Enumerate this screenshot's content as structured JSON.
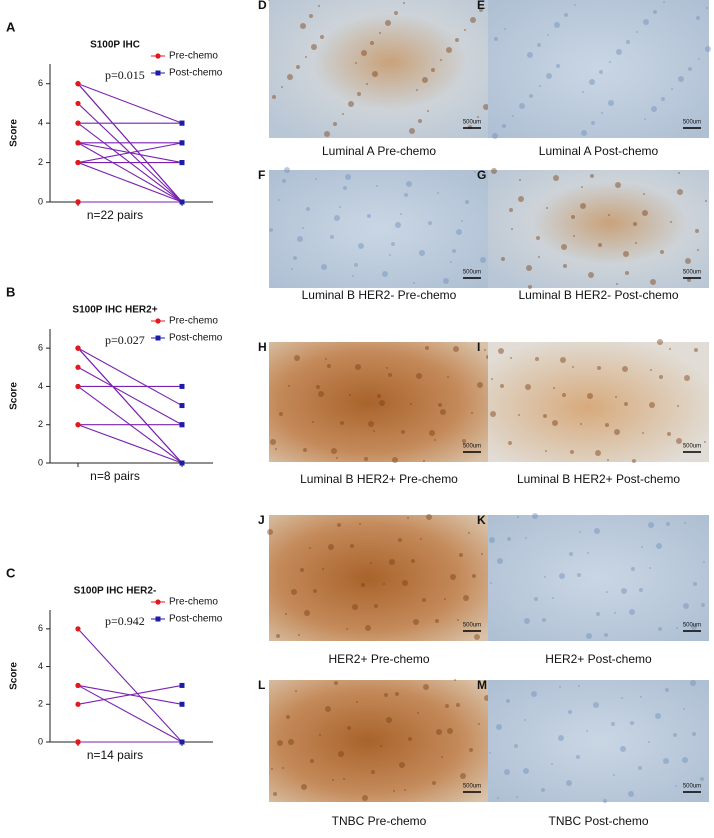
{
  "chart_data": [
    {
      "type": "paired",
      "panel_label": "A",
      "title": "S100P IHC",
      "ylabel": "Score",
      "annotation": "p=0.015",
      "xlabel": "n=22 pairs",
      "series": [
        {
          "name": "Pre-chemo",
          "color": "#e3171c",
          "values": [
            6,
            6,
            6,
            5,
            4,
            4,
            3,
            3,
            3,
            2,
            2,
            2,
            0,
            0,
            0,
            0,
            0,
            0,
            0,
            0,
            0,
            0
          ]
        },
        {
          "name": "Post-chemo",
          "color": "#1c1ca6",
          "values": [
            4,
            0,
            0,
            0,
            4,
            0,
            2,
            0,
            3,
            3,
            2,
            0,
            0,
            0,
            0,
            0,
            0,
            0,
            0,
            0,
            0,
            0
          ]
        }
      ],
      "pair_color": "#7a22b0",
      "ylim": [
        0,
        7
      ],
      "yticks": [
        0,
        2,
        4,
        6
      ]
    },
    {
      "type": "paired",
      "panel_label": "B",
      "title": "S100P IHC HER2+",
      "ylabel": "Score",
      "annotation": "p=0.027",
      "xlabel": "n=8 pairs",
      "series": [
        {
          "name": "Pre-chemo",
          "color": "#e3171c",
          "values": [
            6,
            6,
            6,
            5,
            4,
            4,
            2,
            2
          ]
        },
        {
          "name": "Post-chemo",
          "color": "#1c1ca6",
          "values": [
            3,
            0,
            0,
            2,
            4,
            0,
            2,
            0
          ]
        }
      ],
      "pair_color": "#7a22b0",
      "ylim": [
        0,
        7
      ],
      "yticks": [
        0,
        2,
        4,
        6
      ]
    },
    {
      "type": "paired",
      "panel_label": "C",
      "title": "S100P IHC HER2-",
      "ylabel": "Score",
      "annotation": "p=0.942",
      "xlabel": "n=14 pairs",
      "series": [
        {
          "name": "Pre-chemo",
          "color": "#e3171c",
          "values": [
            6,
            3,
            3,
            2,
            0,
            0,
            0,
            0,
            0,
            0,
            0,
            0,
            0,
            0
          ]
        },
        {
          "name": "Post-chemo",
          "color": "#1c1ca6",
          "values": [
            0,
            2,
            0,
            3,
            0,
            0,
            0,
            0,
            0,
            0,
            0,
            0,
            0,
            0
          ]
        }
      ],
      "pair_color": "#7a22b0",
      "ylim": [
        0,
        7
      ],
      "yticks": [
        0,
        2,
        4,
        6
      ]
    }
  ],
  "panels": [
    {
      "label": "D",
      "caption": "Luminal A  Pre-chemo",
      "scale_bar": "500um"
    },
    {
      "label": "E",
      "caption": "Luminal A  Post-chemo",
      "scale_bar": "500um"
    },
    {
      "label": "F",
      "caption": "Luminal B HER2- Pre-chemo",
      "scale_bar": "500um"
    },
    {
      "label": "G",
      "caption": "Luminal B HER2- Post-chemo",
      "scale_bar": "500um"
    },
    {
      "label": "H",
      "caption": "Luminal B HER2+ Pre-chemo",
      "scale_bar": "500um"
    },
    {
      "label": "I",
      "caption": "Luminal B HER2+ Post-chemo",
      "scale_bar": "500um"
    },
    {
      "label": "J",
      "caption": "HER2+ Pre-chemo",
      "scale_bar": "500um"
    },
    {
      "label": "K",
      "caption": "HER2+ Post-chemo",
      "scale_bar": "500um"
    },
    {
      "label": "L",
      "caption": "TNBC Pre-chemo",
      "scale_bar": "500um"
    },
    {
      "label": "M",
      "caption": "TNBC Post-chemo",
      "scale_bar": "500um"
    }
  ]
}
